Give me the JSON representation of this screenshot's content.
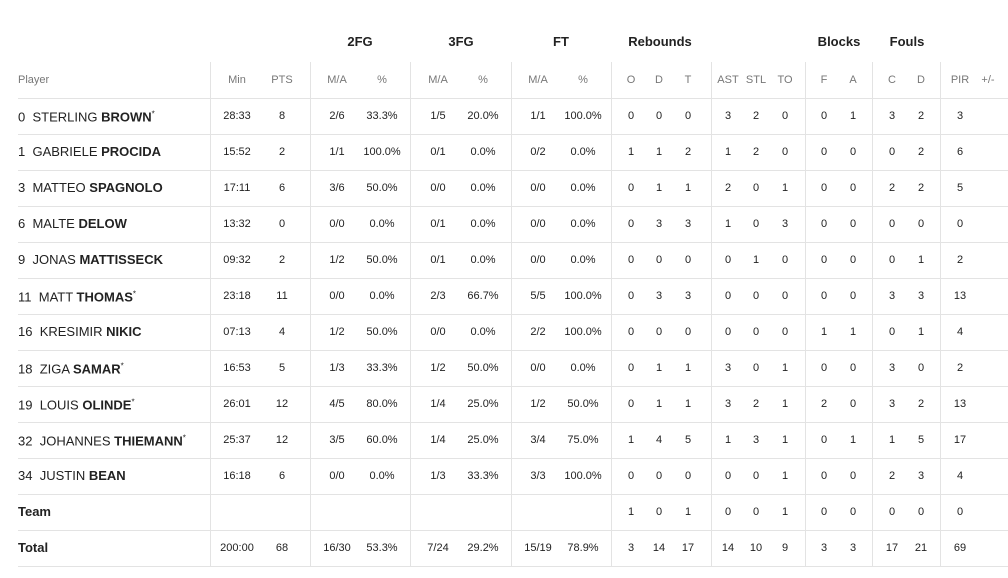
{
  "table": {
    "groups": [
      "2FG",
      "3FG",
      "FT",
      "Rebounds",
      "Blocks",
      "Fouls"
    ],
    "columns": [
      "Player",
      "Min",
      "PTS",
      "M/A",
      "%",
      "M/A",
      "%",
      "M/A",
      "%",
      "O",
      "D",
      "T",
      "AST",
      "STL",
      "TO",
      "F",
      "A",
      "C",
      "D",
      "PIR",
      "+/-"
    ],
    "rows": [
      {
        "player": {
          "number": "0",
          "first": "STERLING",
          "last": "BROWN",
          "starter": "*"
        },
        "cells": [
          "28:33",
          8,
          "2/6",
          "33.3%",
          "1/5",
          "20.0%",
          "1/1",
          "100.0%",
          0,
          0,
          0,
          3,
          2,
          0,
          0,
          1,
          3,
          2,
          3,
          null
        ]
      },
      {
        "player": {
          "number": "1",
          "first": "GABRIELE",
          "last": "PROCIDA"
        },
        "cells": [
          "15:52",
          2,
          "1/1",
          "100.0%",
          "0/1",
          "0.0%",
          "0/2",
          "0.0%",
          1,
          1,
          2,
          1,
          2,
          0,
          0,
          0,
          0,
          2,
          6,
          null
        ]
      },
      {
        "player": {
          "number": "3",
          "first": "MATTEO",
          "last": "SPAGNOLO"
        },
        "cells": [
          "17:11",
          6,
          "3/6",
          "50.0%",
          "0/0",
          "0.0%",
          "0/0",
          "0.0%",
          0,
          1,
          1,
          2,
          0,
          1,
          0,
          0,
          2,
          2,
          5,
          null
        ]
      },
      {
        "player": {
          "number": "6",
          "first": "MALTE",
          "last": "DELOW"
        },
        "cells": [
          "13:32",
          0,
          "0/0",
          "0.0%",
          "0/1",
          "0.0%",
          "0/0",
          "0.0%",
          0,
          3,
          3,
          1,
          0,
          3,
          0,
          0,
          0,
          0,
          0,
          null
        ]
      },
      {
        "player": {
          "number": "9",
          "first": "JONAS",
          "last": "MATTISSECK"
        },
        "cells": [
          "09:32",
          2,
          "1/2",
          "50.0%",
          "0/1",
          "0.0%",
          "0/0",
          "0.0%",
          0,
          0,
          0,
          0,
          1,
          0,
          0,
          0,
          0,
          1,
          2,
          null
        ]
      },
      {
        "player": {
          "number": "11",
          "first": "MATT",
          "last": "THOMAS",
          "starter": "*"
        },
        "cells": [
          "23:18",
          11,
          "0/0",
          "0.0%",
          "2/3",
          "66.7%",
          "5/5",
          "100.0%",
          0,
          3,
          3,
          0,
          0,
          0,
          0,
          0,
          3,
          3,
          13,
          null
        ]
      },
      {
        "player": {
          "number": "16",
          "first": "KRESIMIR",
          "last": "NIKIC"
        },
        "cells": [
          "07:13",
          4,
          "1/2",
          "50.0%",
          "0/0",
          "0.0%",
          "2/2",
          "100.0%",
          0,
          0,
          0,
          0,
          0,
          0,
          1,
          1,
          0,
          1,
          4,
          null
        ]
      },
      {
        "player": {
          "number": "18",
          "first": "ZIGA",
          "last": "SAMAR",
          "starter": "*"
        },
        "cells": [
          "16:53",
          5,
          "1/3",
          "33.3%",
          "1/2",
          "50.0%",
          "0/0",
          "0.0%",
          0,
          1,
          1,
          3,
          0,
          1,
          0,
          0,
          3,
          0,
          2,
          null
        ]
      },
      {
        "player": {
          "number": "19",
          "first": "LOUIS",
          "last": "OLINDE",
          "starter": "*"
        },
        "cells": [
          "26:01",
          12,
          "4/5",
          "80.0%",
          "1/4",
          "25.0%",
          "1/2",
          "50.0%",
          0,
          1,
          1,
          3,
          2,
          1,
          2,
          0,
          3,
          2,
          13,
          null
        ]
      },
      {
        "player": {
          "number": "32",
          "first": "JOHANNES",
          "last": "THIEMANN",
          "starter": "*"
        },
        "cells": [
          "25:37",
          12,
          "3/5",
          "60.0%",
          "1/4",
          "25.0%",
          "3/4",
          "75.0%",
          1,
          4,
          5,
          1,
          3,
          1,
          0,
          1,
          1,
          5,
          17,
          null
        ]
      },
      {
        "player": {
          "number": "34",
          "first": "JUSTIN",
          "last": "BEAN"
        },
        "cells": [
          "16:18",
          6,
          "0/0",
          "0.0%",
          "1/3",
          "33.3%",
          "3/3",
          "100.0%",
          0,
          0,
          0,
          0,
          0,
          1,
          0,
          0,
          2,
          3,
          4,
          null
        ]
      },
      {
        "label": "Team",
        "cells": [
          null,
          null,
          null,
          null,
          null,
          null,
          null,
          null,
          1,
          0,
          1,
          0,
          0,
          1,
          0,
          0,
          0,
          0,
          0,
          null
        ]
      },
      {
        "label": "Total",
        "cells": [
          "200:00",
          68,
          "16/30",
          "53.3%",
          "7/24",
          "29.2%",
          "15/19",
          "78.9%",
          3,
          14,
          17,
          14,
          10,
          9,
          3,
          3,
          17,
          21,
          69,
          null
        ]
      }
    ]
  }
}
